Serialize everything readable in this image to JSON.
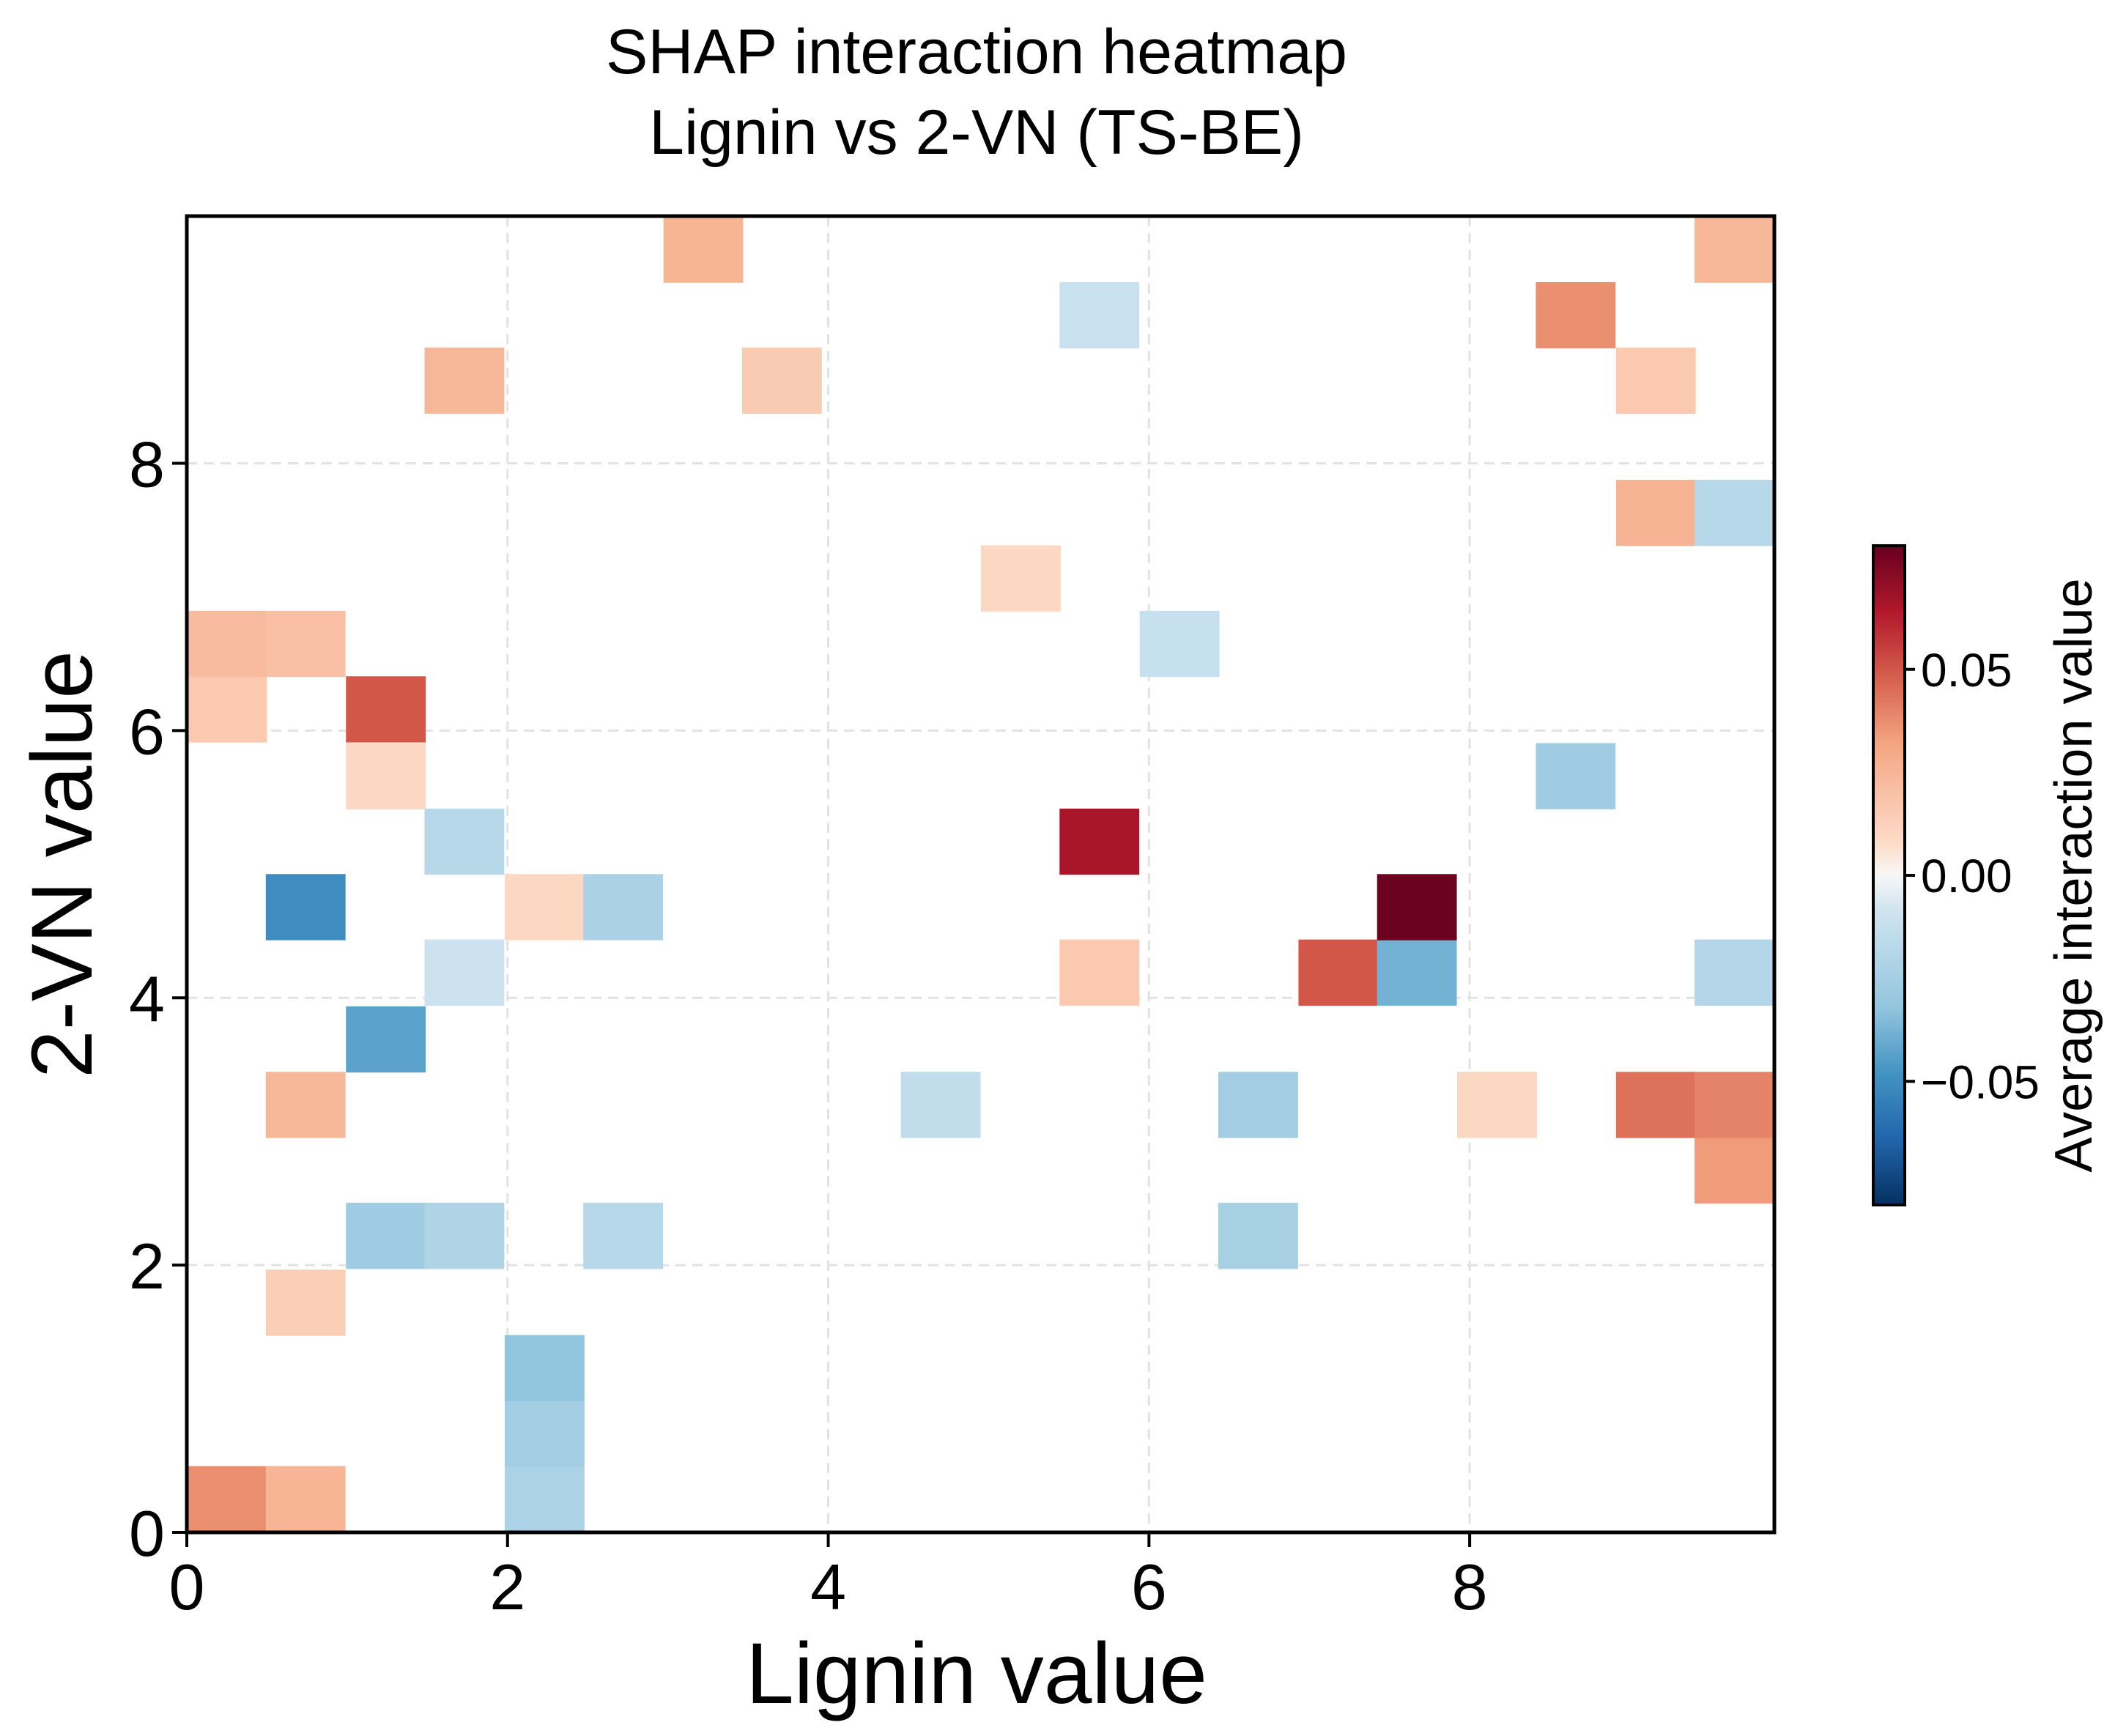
{
  "chart_data": {
    "type": "heatmap",
    "title": [
      "SHAP interaction heatmap",
      "Lignin vs 2-VN (TS-BE)"
    ],
    "xlabel": "Lignin value",
    "ylabel": "2-VN value",
    "xlim": [
      0,
      9.9
    ],
    "ylim": [
      0,
      9.85
    ],
    "xticks": [
      0,
      2,
      4,
      6,
      8
    ],
    "yticks": [
      0,
      2,
      4,
      6,
      8
    ],
    "grid": true,
    "bin_width": 0.495,
    "bin_height": 0.4925,
    "colormap": "RdBu_r",
    "colorbar": {
      "label": "Average interaction value",
      "range": [
        -0.08,
        0.08
      ],
      "ticks": [
        -0.05,
        0.0,
        0.05
      ],
      "tick_labels": [
        "−0.05",
        "0.00",
        "0.05"
      ]
    },
    "cells": [
      {
        "x": 0.25,
        "y": 0.25,
        "value": 0.037
      },
      {
        "x": 0.74,
        "y": 0.25,
        "value": 0.025
      },
      {
        "x": 2.23,
        "y": 0.25,
        "value": -0.022
      },
      {
        "x": 2.23,
        "y": 0.74,
        "value": -0.026
      },
      {
        "x": 2.23,
        "y": 1.23,
        "value": -0.032
      },
      {
        "x": 0.74,
        "y": 1.72,
        "value": 0.014
      },
      {
        "x": 1.24,
        "y": 2.22,
        "value": -0.027
      },
      {
        "x": 1.73,
        "y": 2.22,
        "value": -0.021
      },
      {
        "x": 2.72,
        "y": 2.22,
        "value": -0.018
      },
      {
        "x": 6.68,
        "y": 2.22,
        "value": -0.024
      },
      {
        "x": 9.65,
        "y": 2.71,
        "value": 0.034
      },
      {
        "x": 0.74,
        "y": 3.2,
        "value": 0.024
      },
      {
        "x": 4.7,
        "y": 3.2,
        "value": -0.014
      },
      {
        "x": 6.68,
        "y": 3.2,
        "value": -0.026
      },
      {
        "x": 8.17,
        "y": 3.2,
        "value": 0.01
      },
      {
        "x": 9.16,
        "y": 3.2,
        "value": 0.044
      },
      {
        "x": 9.65,
        "y": 3.2,
        "value": 0.04
      },
      {
        "x": 1.24,
        "y": 3.69,
        "value": -0.043
      },
      {
        "x": 1.73,
        "y": 4.19,
        "value": -0.01
      },
      {
        "x": 5.69,
        "y": 4.19,
        "value": 0.016
      },
      {
        "x": 7.18,
        "y": 4.19,
        "value": 0.05
      },
      {
        "x": 7.67,
        "y": 4.19,
        "value": -0.038
      },
      {
        "x": 9.65,
        "y": 4.19,
        "value": -0.019
      },
      {
        "x": 0.74,
        "y": 4.68,
        "value": -0.05
      },
      {
        "x": 2.23,
        "y": 4.68,
        "value": 0.01
      },
      {
        "x": 2.72,
        "y": 4.68,
        "value": -0.023
      },
      {
        "x": 7.67,
        "y": 4.68,
        "value": 0.079
      },
      {
        "x": 1.73,
        "y": 5.17,
        "value": -0.018
      },
      {
        "x": 5.69,
        "y": 5.17,
        "value": 0.066
      },
      {
        "x": 1.24,
        "y": 5.66,
        "value": 0.01
      },
      {
        "x": 8.66,
        "y": 5.66,
        "value": -0.027
      },
      {
        "x": 0.25,
        "y": 6.16,
        "value": 0.016
      },
      {
        "x": 1.24,
        "y": 6.16,
        "value": 0.05
      },
      {
        "x": 0.25,
        "y": 6.65,
        "value": 0.022
      },
      {
        "x": 0.74,
        "y": 6.65,
        "value": 0.02
      },
      {
        "x": 6.19,
        "y": 6.65,
        "value": -0.012
      },
      {
        "x": 5.2,
        "y": 7.14,
        "value": 0.01
      },
      {
        "x": 9.16,
        "y": 7.63,
        "value": 0.026
      },
      {
        "x": 9.65,
        "y": 7.63,
        "value": -0.018
      },
      {
        "x": 1.73,
        "y": 8.62,
        "value": 0.024
      },
      {
        "x": 3.71,
        "y": 8.62,
        "value": 0.015
      },
      {
        "x": 9.16,
        "y": 8.62,
        "value": 0.016
      },
      {
        "x": 5.69,
        "y": 9.11,
        "value": -0.011
      },
      {
        "x": 8.66,
        "y": 9.11,
        "value": 0.037
      },
      {
        "x": 3.22,
        "y": 9.6,
        "value": 0.025
      },
      {
        "x": 9.65,
        "y": 9.6,
        "value": 0.024
      }
    ]
  }
}
